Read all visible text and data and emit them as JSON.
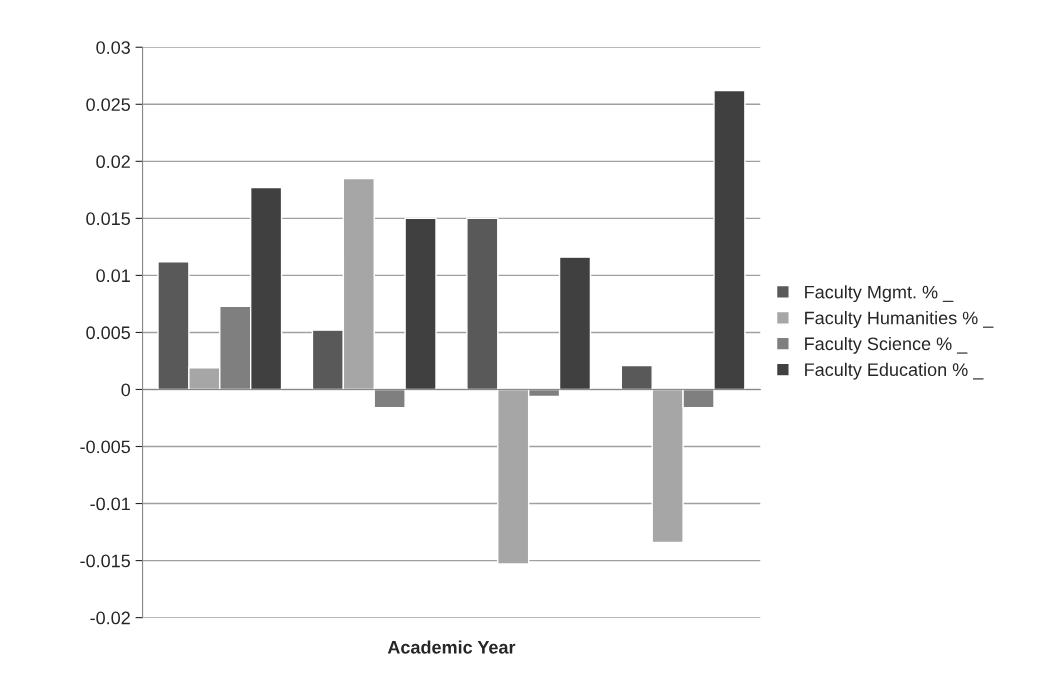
{
  "chart_data": {
    "type": "bar",
    "xlabel": "Academic Year",
    "categories": [
      null,
      null,
      null,
      null
    ],
    "series": [
      {
        "name": "Faculty Mgmt. % _",
        "color": "#595959",
        "values": [
          0.0112,
          0.0052,
          0.015,
          0.0021
        ]
      },
      {
        "name": "Faculty Humanities % _",
        "color": "#a6a6a6",
        "values": [
          0.0019,
          0.0185,
          -0.0153,
          -0.0134
        ]
      },
      {
        "name": "Faculty Science % _",
        "color": "#7f7f7f",
        "values": [
          0.0073,
          -0.0016,
          -0.0006,
          -0.0016
        ]
      },
      {
        "name": "Faculty Education % _",
        "color": "#404040",
        "values": [
          0.0177,
          0.015,
          0.0116,
          0.0262
        ]
      }
    ],
    "ylim": [
      -0.02,
      0.03
    ],
    "yticks": [
      -0.02,
      -0.015,
      -0.01,
      -0.005,
      0,
      0.005,
      0.01,
      0.015,
      0.02,
      0.025,
      0.03
    ],
    "grid": "y",
    "legend": "right"
  }
}
